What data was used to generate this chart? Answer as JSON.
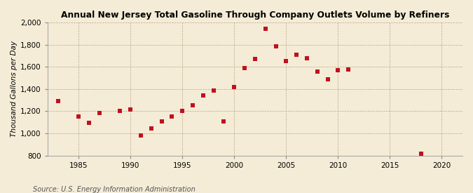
{
  "title": "Annual New Jersey Total Gasoline Through Company Outlets Volume by Refiners",
  "ylabel": "Thousand Gallons per Day",
  "source": "Source: U.S. Energy Information Administration",
  "background_color": "#f5ecd7",
  "plot_background_color": "#f5ecd7",
  "marker_color": "#c0111f",
  "marker": "s",
  "marker_size": 4,
  "xlim": [
    1982,
    2022
  ],
  "ylim": [
    800,
    2000
  ],
  "yticks": [
    800,
    1000,
    1200,
    1400,
    1600,
    1800,
    2000
  ],
  "xticks": [
    1985,
    1990,
    1995,
    2000,
    2005,
    2010,
    2015,
    2020
  ],
  "data": {
    "years": [
      1983,
      1985,
      1986,
      1987,
      1989,
      1990,
      1991,
      1992,
      1993,
      1994,
      1995,
      1996,
      1997,
      1998,
      1999,
      2000,
      2001,
      2002,
      2003,
      2004,
      2005,
      2006,
      2007,
      2008,
      2009,
      2010,
      2011,
      2018
    ],
    "values": [
      1290,
      1150,
      1095,
      1185,
      1205,
      1215,
      980,
      1045,
      1110,
      1150,
      1205,
      1255,
      1345,
      1385,
      1105,
      1415,
      1590,
      1670,
      1940,
      1785,
      1650,
      1710,
      1675,
      1555,
      1490,
      1570,
      1575,
      820
    ]
  }
}
